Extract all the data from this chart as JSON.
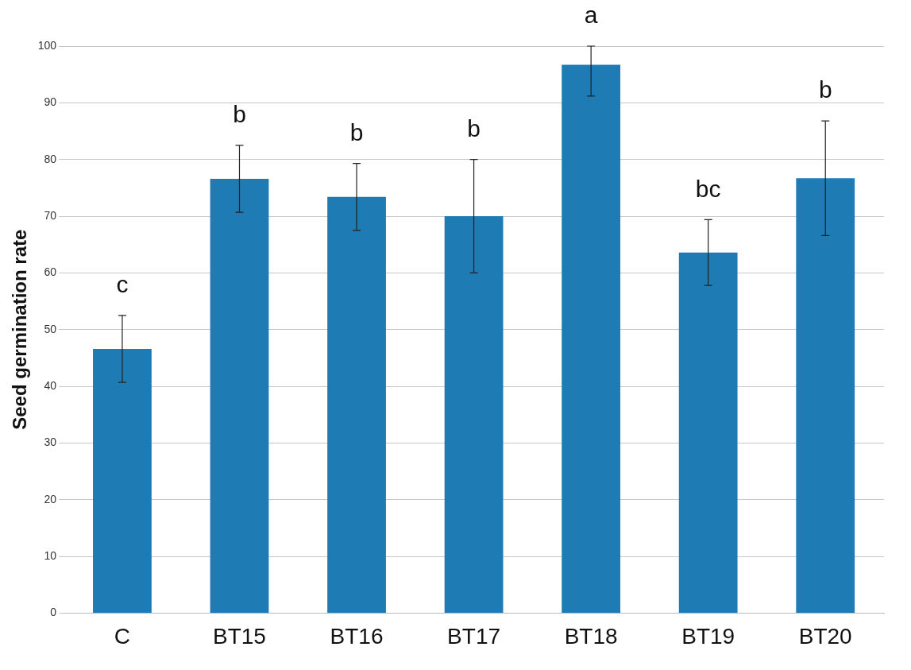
{
  "chart_data": {
    "type": "bar",
    "ylabel": "Seed germination rate",
    "categories": [
      "C",
      "BT15",
      "BT16",
      "BT17",
      "BT18",
      "BT19",
      "BT20"
    ],
    "values": [
      46.6,
      76.6,
      73.4,
      70,
      96.7,
      63.6,
      76.7
    ],
    "errors": [
      5.9,
      5.9,
      5.9,
      10,
      [
        91.2,
        100
      ],
      5.8,
      10.1
    ],
    "color": "#1f7bb3",
    "ylim": [
      0,
      100
    ],
    "yticks": [
      0,
      10,
      20,
      30,
      40,
      50,
      60,
      70,
      80,
      90,
      100
    ],
    "grid": "y",
    "legend": false,
    "annotations": [
      "c",
      "b",
      "b",
      "b",
      "a",
      "bc",
      "b"
    ]
  }
}
